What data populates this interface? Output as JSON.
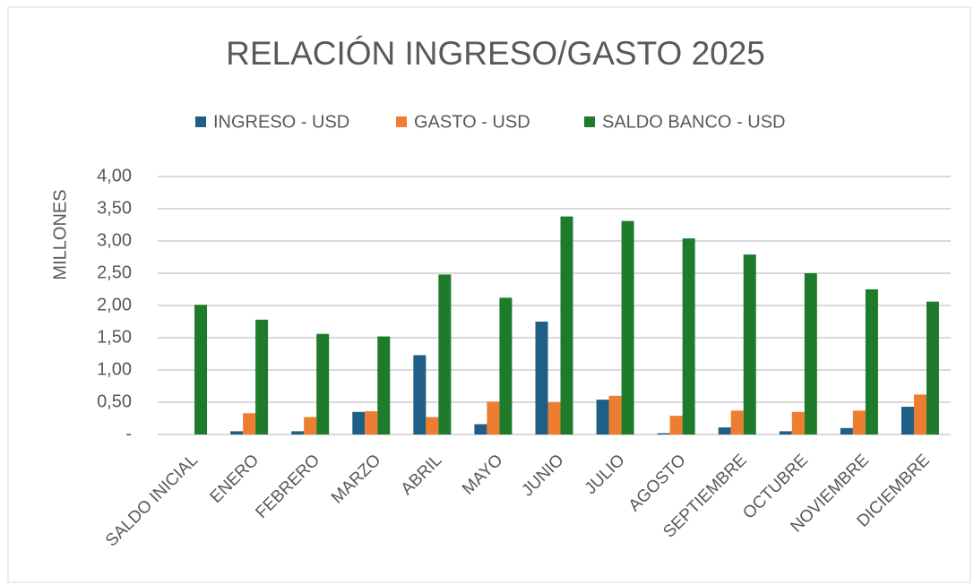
{
  "chart_data": {
    "type": "bar",
    "title": "RELACIÓN INGRESO/GASTO 2025",
    "y_label": "MILLONES",
    "categories": [
      "SALDO INICIAL",
      "ENERO",
      "FEBRERO",
      "MARZO",
      "ABRIL",
      "MAYO",
      "JUNIO",
      "JULIO",
      "AGOSTO",
      "SEPTIEMBRE",
      "OCTUBRE",
      "NOVIEMBRE",
      "DICIEMBRE"
    ],
    "series": [
      {
        "name": "INGRESO - USD",
        "color": "#1f5f85",
        "values": [
          0,
          0.05,
          0.05,
          0.35,
          1.23,
          0.16,
          1.75,
          0.54,
          0.02,
          0.11,
          0.05,
          0.1,
          0.43
        ]
      },
      {
        "name": "GASTO - USD",
        "color": "#ed7d31",
        "values": [
          0,
          0.33,
          0.27,
          0.36,
          0.27,
          0.51,
          0.5,
          0.6,
          0.29,
          0.37,
          0.35,
          0.37,
          0.62
        ]
      },
      {
        "name": "SALDO BANCO - USD",
        "color": "#1e7b2c",
        "values": [
          2.01,
          1.78,
          1.56,
          1.52,
          2.48,
          2.12,
          3.38,
          3.31,
          3.04,
          2.79,
          2.5,
          2.25,
          2.06
        ]
      }
    ],
    "ylim": [
      0,
      4
    ],
    "yticks": [
      {
        "value": 0,
        "label": "-"
      },
      {
        "value": 0.5,
        "label": "0,50"
      },
      {
        "value": 1,
        "label": "1,00"
      },
      {
        "value": 1.5,
        "label": "1,50"
      },
      {
        "value": 2,
        "label": "2,00"
      },
      {
        "value": 2.5,
        "label": "2,50"
      },
      {
        "value": 3,
        "label": "3,00"
      },
      {
        "value": 3.5,
        "label": "3,50"
      },
      {
        "value": 4,
        "label": "4,00"
      }
    ],
    "grid": true,
    "legend": "top"
  }
}
